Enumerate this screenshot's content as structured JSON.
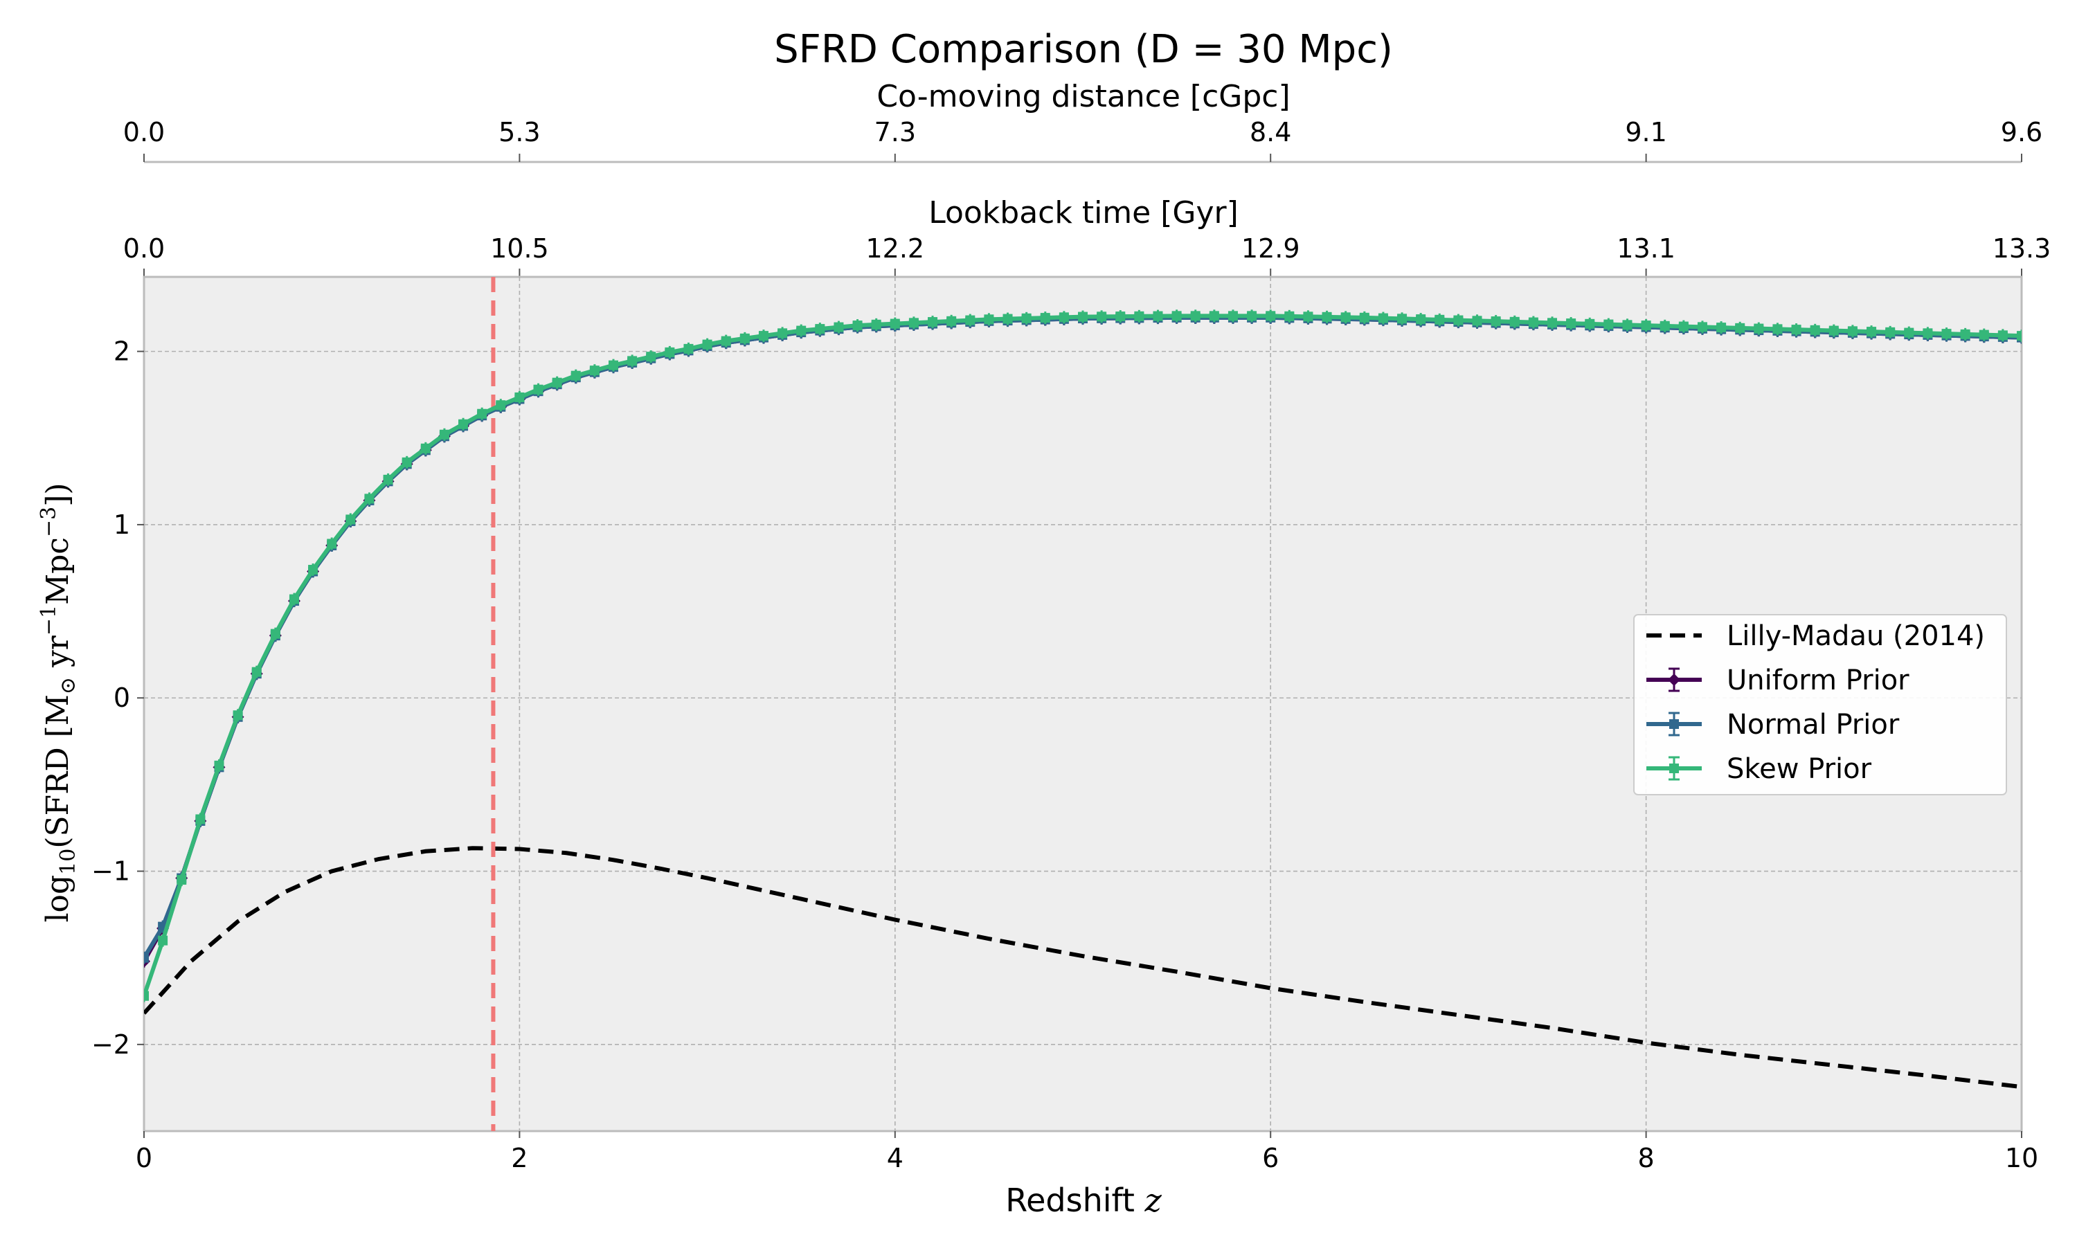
{
  "chart_data": {
    "type": "line",
    "title": "SFRD Comparison (D = 30 Mpc)",
    "xlabel_prefix": "Redshift ",
    "xlabel_symbol": "z",
    "ylabel_main": "log",
    "ylabel_sub": "10",
    "ylabel_rest": "(SFRD [M",
    "ylabel_sun": "⊙",
    "ylabel_yr": " yr",
    "ylabel_exp1": "−1",
    "ylabel_mpc": "Mpc",
    "ylabel_exp3": "−3",
    "ylabel_close": "])",
    "xlim": [
      0,
      10
    ],
    "ylim": [
      -2.5,
      2.43
    ],
    "x_ticks": [
      0,
      2,
      4,
      6,
      8,
      10
    ],
    "x_tick_labels": [
      "0",
      "2",
      "4",
      "6",
      "8",
      "10"
    ],
    "y_ticks": [
      -2,
      -1,
      0,
      1,
      2
    ],
    "y_tick_labels": [
      "−2",
      "−1",
      "0",
      "1",
      "2"
    ],
    "grid": true,
    "legend_position": "right",
    "top_axes": [
      {
        "label": "Lookback time [Gyr]",
        "ticks": [
          0,
          2,
          4,
          6,
          8,
          10
        ],
        "tick_labels": [
          "0.0",
          "10.5",
          "12.2",
          "12.9",
          "13.1",
          "13.3"
        ]
      },
      {
        "label": "Co-moving distance [cGpc]",
        "ticks": [
          0,
          2,
          4,
          6,
          8,
          10
        ],
        "tick_labels": [
          "0.0",
          "5.3",
          "7.3",
          "8.4",
          "9.1",
          "9.6"
        ]
      }
    ],
    "vline": {
      "x": 1.86,
      "color": "#f07878"
    },
    "reference": {
      "name": "Lilly-Madau (2014)",
      "color": "#000000",
      "x": [
        0,
        0.25,
        0.5,
        0.75,
        1.0,
        1.25,
        1.5,
        1.75,
        2.0,
        2.25,
        2.5,
        2.75,
        3.0,
        3.5,
        4.0,
        4.5,
        5.0,
        5.5,
        6.0,
        6.5,
        7.0,
        7.5,
        8.0,
        8.5,
        9.0,
        9.5,
        10.0
      ],
      "y": [
        -1.82,
        -1.52,
        -1.29,
        -1.12,
        -1.0,
        -0.93,
        -0.885,
        -0.867,
        -0.872,
        -0.895,
        -0.935,
        -0.985,
        -1.04,
        -1.16,
        -1.28,
        -1.39,
        -1.49,
        -1.58,
        -1.675,
        -1.755,
        -1.83,
        -1.905,
        -1.99,
        -2.06,
        -2.12,
        -2.18,
        -2.245
      ]
    },
    "series": [
      {
        "name": "Uniform Prior",
        "color": "#440154",
        "marker": "diamond",
        "x": [
          0,
          0.1,
          0.2,
          0.3,
          0.4,
          0.5,
          0.6,
          0.7,
          0.8,
          0.9,
          1.0,
          1.1,
          1.2,
          1.3,
          1.4,
          1.5,
          1.6,
          1.7,
          1.8,
          1.9,
          2.0,
          2.1,
          2.2,
          2.3,
          2.4,
          2.5,
          2.6,
          2.7,
          2.8,
          2.9,
          3.0,
          3.1,
          3.2,
          3.3,
          3.4,
          3.5,
          3.6,
          3.7,
          3.8,
          3.9,
          4.0,
          4.1,
          4.2,
          4.3,
          4.4,
          4.5,
          4.6,
          4.7,
          4.8,
          4.9,
          5.0,
          5.1,
          5.2,
          5.3,
          5.4,
          5.5,
          5.6,
          5.7,
          5.8,
          5.9,
          6.0,
          6.1,
          6.2,
          6.3,
          6.4,
          6.5,
          6.6,
          6.7,
          6.8,
          6.9,
          7.0,
          7.1,
          7.2,
          7.3,
          7.4,
          7.5,
          7.6,
          7.7,
          7.8,
          7.9,
          8.0,
          8.1,
          8.2,
          8.3,
          8.4,
          8.5,
          8.6,
          8.7,
          8.8,
          8.9,
          9.0,
          9.1,
          9.2,
          9.3,
          9.4,
          9.5,
          9.6,
          9.7,
          9.8,
          9.9,
          10.0
        ],
        "y": [
          -1.52,
          -1.33,
          -1.04,
          -0.71,
          -0.4,
          -0.11,
          0.14,
          0.36,
          0.56,
          0.73,
          0.88,
          1.02,
          1.14,
          1.25,
          1.35,
          1.43,
          1.51,
          1.57,
          1.63,
          1.68,
          1.725,
          1.77,
          1.81,
          1.85,
          1.88,
          1.91,
          1.935,
          1.96,
          1.985,
          2.005,
          2.03,
          2.05,
          2.065,
          2.08,
          2.095,
          2.11,
          2.12,
          2.13,
          2.14,
          2.145,
          2.15,
          2.155,
          2.16,
          2.165,
          2.17,
          2.175,
          2.178,
          2.181,
          2.184,
          2.187,
          2.19,
          2.191,
          2.192,
          2.193,
          2.194,
          2.195,
          2.195,
          2.195,
          2.195,
          2.195,
          2.195,
          2.193,
          2.191,
          2.189,
          2.187,
          2.185,
          2.182,
          2.179,
          2.176,
          2.173,
          2.17,
          2.167,
          2.164,
          2.161,
          2.158,
          2.155,
          2.152,
          2.149,
          2.146,
          2.143,
          2.14,
          2.137,
          2.134,
          2.131,
          2.128,
          2.125,
          2.122,
          2.119,
          2.116,
          2.113,
          2.11,
          2.107,
          2.104,
          2.101,
          2.098,
          2.095,
          2.092,
          2.089,
          2.086,
          2.083,
          2.08
        ]
      },
      {
        "name": "Normal Prior",
        "color": "#31688e",
        "marker": "square",
        "x": [
          0,
          0.1,
          0.2,
          0.3,
          0.4,
          0.5,
          0.6,
          0.7,
          0.8,
          0.9,
          1.0,
          1.1,
          1.2,
          1.3,
          1.4,
          1.5,
          1.6,
          1.7,
          1.8,
          1.9,
          2.0,
          2.1,
          2.2,
          2.3,
          2.4,
          2.5,
          2.6,
          2.7,
          2.8,
          2.9,
          3.0,
          3.1,
          3.2,
          3.3,
          3.4,
          3.5,
          3.6,
          3.7,
          3.8,
          3.9,
          4.0,
          4.1,
          4.2,
          4.3,
          4.4,
          4.5,
          4.6,
          4.7,
          4.8,
          4.9,
          5.0,
          5.1,
          5.2,
          5.3,
          5.4,
          5.5,
          5.6,
          5.7,
          5.8,
          5.9,
          6.0,
          6.1,
          6.2,
          6.3,
          6.4,
          6.5,
          6.6,
          6.7,
          6.8,
          6.9,
          7.0,
          7.1,
          7.2,
          7.3,
          7.4,
          7.5,
          7.6,
          7.7,
          7.8,
          7.9,
          8.0,
          8.1,
          8.2,
          8.3,
          8.4,
          8.5,
          8.6,
          8.7,
          8.8,
          8.9,
          9.0,
          9.1,
          9.2,
          9.3,
          9.4,
          9.5,
          9.6,
          9.7,
          9.8,
          9.9,
          10.0
        ],
        "y": [
          -1.5,
          -1.32,
          -1.04,
          -0.71,
          -0.4,
          -0.11,
          0.14,
          0.36,
          0.56,
          0.73,
          0.88,
          1.02,
          1.14,
          1.25,
          1.35,
          1.43,
          1.51,
          1.57,
          1.63,
          1.68,
          1.725,
          1.77,
          1.81,
          1.85,
          1.88,
          1.91,
          1.935,
          1.96,
          1.985,
          2.005,
          2.03,
          2.05,
          2.065,
          2.08,
          2.095,
          2.11,
          2.12,
          2.13,
          2.14,
          2.145,
          2.15,
          2.155,
          2.16,
          2.165,
          2.17,
          2.175,
          2.178,
          2.181,
          2.184,
          2.187,
          2.19,
          2.191,
          2.192,
          2.193,
          2.194,
          2.195,
          2.195,
          2.195,
          2.195,
          2.195,
          2.195,
          2.193,
          2.191,
          2.189,
          2.187,
          2.185,
          2.182,
          2.179,
          2.176,
          2.173,
          2.17,
          2.167,
          2.164,
          2.161,
          2.158,
          2.155,
          2.152,
          2.149,
          2.146,
          2.143,
          2.14,
          2.137,
          2.134,
          2.131,
          2.128,
          2.125,
          2.122,
          2.119,
          2.116,
          2.113,
          2.11,
          2.107,
          2.104,
          2.101,
          2.098,
          2.095,
          2.092,
          2.089,
          2.086,
          2.083,
          2.08
        ]
      },
      {
        "name": "Skew Prior",
        "color": "#35b779",
        "marker": "square",
        "x": [
          0,
          0.1,
          0.2,
          0.3,
          0.4,
          0.5,
          0.6,
          0.7,
          0.8,
          0.9,
          1.0,
          1.1,
          1.2,
          1.3,
          1.4,
          1.5,
          1.6,
          1.7,
          1.8,
          1.9,
          2.0,
          2.1,
          2.2,
          2.3,
          2.4,
          2.5,
          2.6,
          2.7,
          2.8,
          2.9,
          3.0,
          3.1,
          3.2,
          3.3,
          3.4,
          3.5,
          3.6,
          3.7,
          3.8,
          3.9,
          4.0,
          4.1,
          4.2,
          4.3,
          4.4,
          4.5,
          4.6,
          4.7,
          4.8,
          4.9,
          5.0,
          5.1,
          5.2,
          5.3,
          5.4,
          5.5,
          5.6,
          5.7,
          5.8,
          5.9,
          6.0,
          6.1,
          6.2,
          6.3,
          6.4,
          6.5,
          6.6,
          6.7,
          6.8,
          6.9,
          7.0,
          7.1,
          7.2,
          7.3,
          7.4,
          7.5,
          7.6,
          7.7,
          7.8,
          7.9,
          8.0,
          8.1,
          8.2,
          8.3,
          8.4,
          8.5,
          8.6,
          8.7,
          8.8,
          8.9,
          9.0,
          9.1,
          9.2,
          9.3,
          9.4,
          9.5,
          9.6,
          9.7,
          9.8,
          9.9,
          10.0
        ],
        "y": [
          -1.72,
          -1.4,
          -1.05,
          -0.7,
          -0.39,
          -0.1,
          0.15,
          0.37,
          0.57,
          0.74,
          0.89,
          1.03,
          1.15,
          1.26,
          1.36,
          1.44,
          1.52,
          1.58,
          1.64,
          1.69,
          1.735,
          1.78,
          1.82,
          1.86,
          1.89,
          1.92,
          1.945,
          1.97,
          1.995,
          2.015,
          2.04,
          2.06,
          2.075,
          2.09,
          2.105,
          2.12,
          2.13,
          2.14,
          2.15,
          2.155,
          2.16,
          2.165,
          2.17,
          2.175,
          2.18,
          2.185,
          2.188,
          2.191,
          2.194,
          2.197,
          2.2,
          2.201,
          2.202,
          2.203,
          2.204,
          2.205,
          2.205,
          2.205,
          2.205,
          2.205,
          2.205,
          2.203,
          2.201,
          2.199,
          2.197,
          2.195,
          2.192,
          2.189,
          2.186,
          2.183,
          2.18,
          2.177,
          2.174,
          2.171,
          2.168,
          2.165,
          2.162,
          2.159,
          2.156,
          2.153,
          2.15,
          2.147,
          2.144,
          2.141,
          2.138,
          2.135,
          2.132,
          2.129,
          2.126,
          2.123,
          2.12,
          2.117,
          2.114,
          2.111,
          2.108,
          2.105,
          2.102,
          2.099,
          2.096,
          2.093,
          2.09
        ]
      }
    ]
  }
}
